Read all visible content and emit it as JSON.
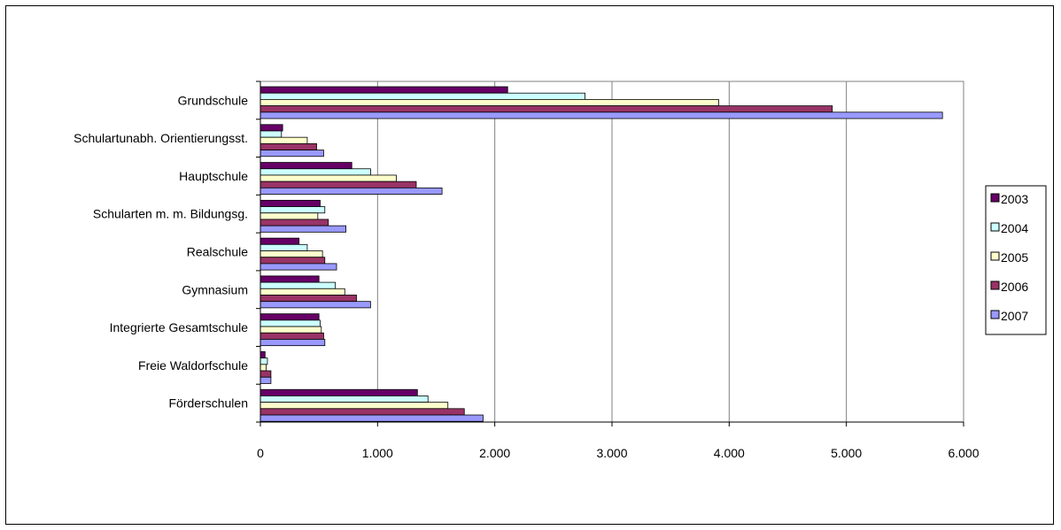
{
  "chart_data": {
    "type": "bar",
    "orientation": "horizontal",
    "title": "",
    "xlabel": "",
    "ylabel": "",
    "categories": [
      "Grundschule",
      "Schulartunabh. Orientierungsst.",
      "Hauptschule",
      "Schularten m. m. Bildungsg.",
      "Realschule",
      "Gymnasium",
      "Integrierte Gesamtschule",
      "Freie Waldorfschule",
      "Förderschulen"
    ],
    "series": [
      {
        "name": "2003",
        "color": "#660066",
        "values": [
          2110,
          190,
          780,
          510,
          330,
          500,
          500,
          40,
          1340
        ]
      },
      {
        "name": "2004",
        "color": "#CCFFFF",
        "values": [
          2770,
          180,
          940,
          550,
          400,
          640,
          510,
          60,
          1430
        ]
      },
      {
        "name": "2005",
        "color": "#FFFFCC",
        "values": [
          3910,
          400,
          1160,
          490,
          530,
          720,
          520,
          50,
          1600
        ]
      },
      {
        "name": "2006",
        "color": "#993366",
        "values": [
          4880,
          480,
          1330,
          580,
          550,
          820,
          540,
          90,
          1740
        ]
      },
      {
        "name": "2007",
        "color": "#9999FF",
        "values": [
          5820,
          540,
          1550,
          730,
          650,
          940,
          550,
          90,
          1900
        ]
      }
    ],
    "xlim": [
      0,
      6000
    ],
    "x_ticks": [
      0,
      1000,
      2000,
      3000,
      4000,
      5000,
      6000
    ],
    "x_tick_labels": [
      "0",
      "1.000",
      "2.000",
      "3.000",
      "4.000",
      "5.000",
      "6.000"
    ],
    "grid": "vertical",
    "legend_position": "right",
    "plot_background": "#ffffff"
  }
}
